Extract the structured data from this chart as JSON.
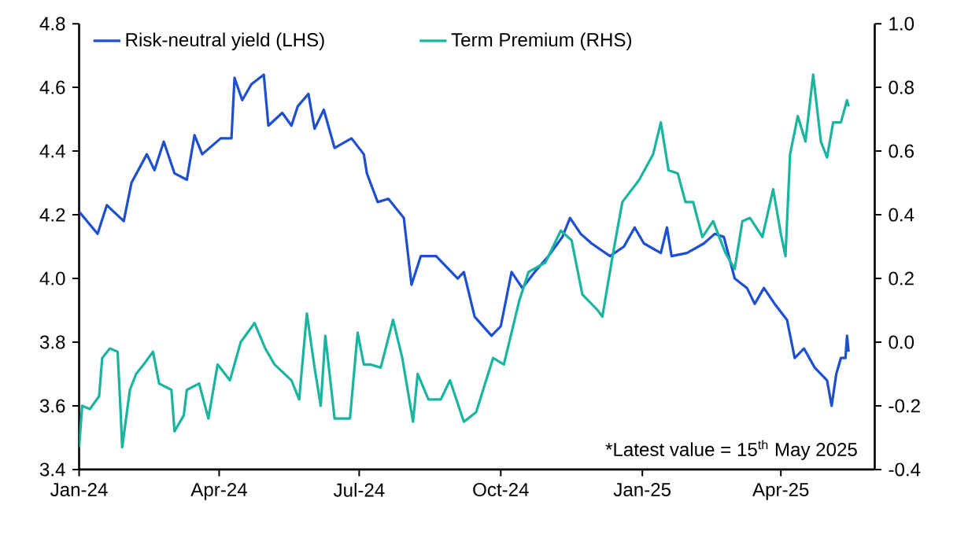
{
  "chart_data": {
    "type": "line",
    "annotations": [
      "*Latest value = 15$^{th}$ May 2025"
    ],
    "xlim": [
      "2024-01-01",
      "2025-06-01"
    ],
    "xticks": [
      {
        "value": "2024-01-01",
        "label": "Jan-24"
      },
      {
        "value": "2024-04-01",
        "label": "Apr-24"
      },
      {
        "value": "2024-07-01",
        "label": "Jul-24"
      },
      {
        "value": "2024-10-01",
        "label": "Oct-24"
      },
      {
        "value": "2025-01-01",
        "label": "Jan-25"
      },
      {
        "value": "2025-04-01",
        "label": "Apr-25"
      }
    ],
    "ylim": [
      3.4,
      4.8
    ],
    "yticks": [
      {
        "value": 3.4,
        "label": "3.4"
      },
      {
        "value": 3.6,
        "label": "3.6"
      },
      {
        "value": 3.8,
        "label": "3.8"
      },
      {
        "value": 4.0,
        "label": "4.0"
      },
      {
        "value": 4.2,
        "label": "4.2"
      },
      {
        "value": 4.4,
        "label": "4.4"
      },
      {
        "value": 4.6,
        "label": "4.6"
      },
      {
        "value": 4.8,
        "label": "4.8"
      }
    ],
    "y2lim": [
      -0.4,
      1.0
    ],
    "y2ticks": [
      {
        "value": -0.4,
        "label": "-0.4"
      },
      {
        "value": -0.2,
        "label": "-0.2"
      },
      {
        "value": 0.0,
        "label": "0.0"
      },
      {
        "value": 0.2,
        "label": "0.2"
      },
      {
        "value": 0.4,
        "label": "0.4"
      },
      {
        "value": 0.6,
        "label": "0.6"
      },
      {
        "value": 0.8,
        "label": "0.8"
      },
      {
        "value": 1.0,
        "label": "1.0"
      }
    ],
    "legend": "top",
    "line_style": "solid",
    "series": [
      {
        "name": "Risk-neutral yield (LHS)",
        "color": "#1d4fd0",
        "x": [
          "2024-01-01",
          "2024-01-13",
          "2024-01-19",
          "2024-01-30",
          "2024-02-04",
          "2024-02-14",
          "2024-02-19",
          "2024-02-25",
          "2024-03-03",
          "2024-03-11",
          "2024-03-16",
          "2024-03-21",
          "2024-04-02",
          "2024-04-09",
          "2024-04-11",
          "2024-04-16",
          "2024-04-22",
          "2024-04-30",
          "2024-05-03",
          "2024-05-12",
          "2024-05-18",
          "2024-05-22",
          "2024-05-29",
          "2024-06-02",
          "2024-06-08",
          "2024-06-15",
          "2024-06-26",
          "2024-07-04",
          "2024-07-06",
          "2024-07-13",
          "2024-07-20",
          "2024-07-30",
          "2024-08-04",
          "2024-08-10",
          "2024-08-20",
          "2024-09-03",
          "2024-09-07",
          "2024-09-14",
          "2024-09-25",
          "2024-10-01",
          "2024-10-08",
          "2024-10-15",
          "2024-10-23",
          "2024-11-01",
          "2024-11-10",
          "2024-11-15",
          "2024-11-22",
          "2024-11-29",
          "2024-12-11",
          "2024-12-20",
          "2024-12-27",
          "2025-01-02",
          "2025-01-13",
          "2025-01-17",
          "2025-01-20",
          "2025-01-30",
          "2025-02-10",
          "2025-02-17",
          "2025-02-23",
          "2025-03-02",
          "2025-03-10",
          "2025-03-15",
          "2025-03-21",
          "2025-03-28",
          "2025-04-05",
          "2025-04-10",
          "2025-04-16",
          "2025-04-23",
          "2025-05-01",
          "2025-05-04",
          "2025-05-07",
          "2025-05-10",
          "2025-05-13",
          "2025-05-14",
          "2025-05-15"
        ],
        "values": [
          4.21,
          4.14,
          4.23,
          4.18,
          4.3,
          4.39,
          4.34,
          4.43,
          4.33,
          4.31,
          4.45,
          4.39,
          4.44,
          4.44,
          4.63,
          4.56,
          4.61,
          4.64,
          4.48,
          4.52,
          4.48,
          4.54,
          4.58,
          4.47,
          4.53,
          4.41,
          4.44,
          4.39,
          4.33,
          4.24,
          4.25,
          4.19,
          3.98,
          4.07,
          4.07,
          4.0,
          4.02,
          3.88,
          3.82,
          3.85,
          4.02,
          3.97,
          4.02,
          4.07,
          4.13,
          4.19,
          4.14,
          4.11,
          4.07,
          4.1,
          4.16,
          4.11,
          4.08,
          4.16,
          4.07,
          4.08,
          4.11,
          4.14,
          4.13,
          4.0,
          3.97,
          3.92,
          3.97,
          3.92,
          3.87,
          3.75,
          3.78,
          3.72,
          3.68,
          3.6,
          3.7,
          3.75,
          3.75,
          3.82,
          3.77
        ]
      },
      {
        "name": "Term Premium (RHS)",
        "color": "#1ab5a0",
        "axis": "y2",
        "x": [
          "2024-01-01",
          "2024-01-03",
          "2024-01-08",
          "2024-01-14",
          "2024-01-16",
          "2024-01-21",
          "2024-01-26",
          "2024-01-28",
          "2024-01-29",
          "2024-02-03",
          "2024-02-07",
          "2024-02-12",
          "2024-02-18",
          "2024-02-22",
          "2024-03-01",
          "2024-03-03",
          "2024-03-09",
          "2024-03-11",
          "2024-03-19",
          "2024-03-25",
          "2024-03-31",
          "2024-04-08",
          "2024-04-15",
          "2024-04-24",
          "2024-05-01",
          "2024-05-07",
          "2024-05-18",
          "2024-05-23",
          "2024-05-28",
          "2024-06-02",
          "2024-06-06",
          "2024-06-09",
          "2024-06-15",
          "2024-06-25",
          "2024-06-30",
          "2024-07-04",
          "2024-07-08",
          "2024-07-15",
          "2024-07-23",
          "2024-07-29",
          "2024-08-05",
          "2024-08-08",
          "2024-08-15",
          "2024-08-23",
          "2024-08-29",
          "2024-09-07",
          "2024-09-15",
          "2024-09-26",
          "2024-10-03",
          "2024-10-13",
          "2024-10-19",
          "2024-10-30",
          "2024-11-09",
          "2024-11-16",
          "2024-11-23",
          "2024-12-03",
          "2024-12-06",
          "2024-12-13",
          "2024-12-19",
          "2024-12-30",
          "2025-01-08",
          "2025-01-13",
          "2025-01-18",
          "2025-01-24",
          "2025-01-29",
          "2025-02-03",
          "2025-02-09",
          "2025-02-16",
          "2025-02-24",
          "2025-03-02",
          "2025-03-07",
          "2025-03-12",
          "2025-03-20",
          "2025-03-27",
          "2025-04-01",
          "2025-04-04",
          "2025-04-07",
          "2025-04-12",
          "2025-04-17",
          "2025-04-22",
          "2025-04-27",
          "2025-05-01",
          "2025-05-05",
          "2025-05-10",
          "2025-05-14",
          "2025-05-15"
        ],
        "values": [
          -0.33,
          -0.2,
          -0.21,
          -0.17,
          -0.05,
          -0.02,
          -0.03,
          -0.22,
          -0.33,
          -0.15,
          -0.1,
          -0.07,
          -0.03,
          -0.13,
          -0.15,
          -0.28,
          -0.23,
          -0.15,
          -0.13,
          -0.24,
          -0.07,
          -0.12,
          0.0,
          0.06,
          -0.02,
          -0.07,
          -0.12,
          -0.18,
          0.09,
          -0.08,
          -0.2,
          0.02,
          -0.24,
          -0.24,
          0.03,
          -0.07,
          -0.07,
          -0.08,
          0.07,
          -0.05,
          -0.25,
          -0.1,
          -0.18,
          -0.18,
          -0.12,
          -0.25,
          -0.22,
          -0.05,
          -0.07,
          0.13,
          0.22,
          0.25,
          0.35,
          0.32,
          0.15,
          0.1,
          0.08,
          0.28,
          0.44,
          0.51,
          0.59,
          0.69,
          0.54,
          0.53,
          0.44,
          0.44,
          0.33,
          0.38,
          0.28,
          0.23,
          0.38,
          0.39,
          0.33,
          0.48,
          0.34,
          0.27,
          0.59,
          0.71,
          0.63,
          0.84,
          0.63,
          0.58,
          0.69,
          0.69,
          0.76,
          0.74
        ]
      }
    ]
  }
}
